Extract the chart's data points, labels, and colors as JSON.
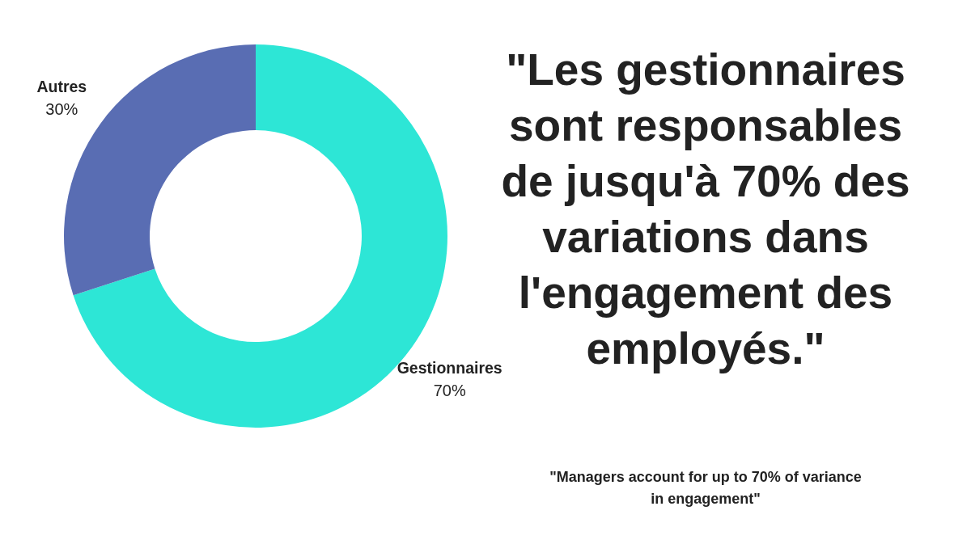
{
  "chart_data": {
    "type": "donut",
    "title": "\"Les gestionnaires\nsont responsables\nde jusqu'à 70% des\nvariations dans\nl'engagement des\nemployés.\"",
    "categories": [
      "Gestionnaires",
      "Autres"
    ],
    "values": [
      70,
      30
    ],
    "colors": [
      "#2de6d6",
      "#596db3"
    ],
    "value_labels": [
      "70%",
      "30%"
    ],
    "annotations": [
      "\"Managers account for up to 70% of variance\nin engagement\""
    ]
  }
}
